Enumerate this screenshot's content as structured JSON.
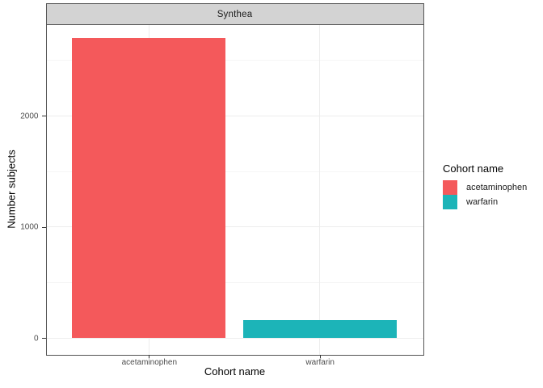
{
  "facet": {
    "label": "Synthea"
  },
  "axes": {
    "x_title": "Cohort name",
    "y_title": "Number subjects"
  },
  "legend": {
    "title": "Cohort name",
    "position": "right",
    "items": [
      {
        "label": "acetaminophen",
        "color": "#F4595B"
      },
      {
        "label": "warfarin",
        "color": "#1CB4B8"
      }
    ]
  },
  "theme_colors": {
    "strip_fill": "#D3D3D3",
    "border": "#545454",
    "grid_major": "#EDEDED",
    "grid_minor": "#F6F6F6",
    "tick": "#333333",
    "tick_label": "#4D4D4D"
  },
  "chart_data": {
    "type": "bar",
    "title": "Synthea",
    "xlabel": "Cohort name",
    "ylabel": "Number subjects",
    "categories": [
      "acetaminophen",
      "warfarin"
    ],
    "values": [
      2700,
      160
    ],
    "colors": [
      "#F4595B",
      "#1CB4B8"
    ],
    "ylim": [
      -140,
      2820
    ],
    "yticks": [
      0,
      1000,
      2000
    ],
    "yticks_minor": [
      500,
      1500,
      2500
    ],
    "bar_width_fraction": 0.9,
    "grid": true,
    "legend_title": "Cohort name",
    "legend_position": "right",
    "facet_label": "Synthea"
  }
}
